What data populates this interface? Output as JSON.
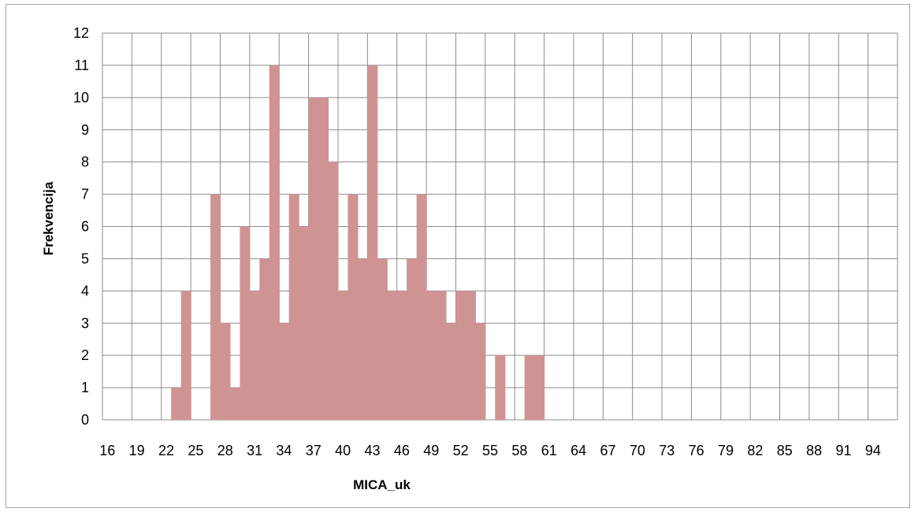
{
  "chart_data": {
    "type": "bar",
    "title": "",
    "xlabel": "MICA_uk",
    "ylabel": "Frekvencija",
    "ylim": [
      0,
      12
    ],
    "yticks": [
      0,
      1,
      2,
      3,
      4,
      5,
      6,
      7,
      8,
      9,
      10,
      11,
      12
    ],
    "grid": true,
    "legend": "none",
    "bar_color": "#d09393",
    "grid_color": "#8c8c8c",
    "categories": [
      16,
      17,
      18,
      19,
      20,
      21,
      22,
      23,
      24,
      25,
      26,
      27,
      28,
      29,
      30,
      31,
      32,
      33,
      34,
      35,
      36,
      37,
      38,
      39,
      40,
      41,
      42,
      43,
      44,
      45,
      46,
      47,
      48,
      49,
      50,
      51,
      52,
      53,
      54,
      55,
      56,
      57,
      58,
      59,
      60,
      61,
      62,
      63,
      64,
      65,
      66,
      67,
      68,
      69,
      70,
      71,
      72,
      73,
      74,
      75,
      76,
      77,
      78,
      79,
      80,
      81,
      82,
      83,
      84,
      85,
      86,
      87,
      88,
      89,
      90,
      91,
      92,
      93,
      94,
      95,
      96
    ],
    "x_tick_labels": [
      "16",
      "19",
      "22",
      "25",
      "28",
      "31",
      "34",
      "37",
      "40",
      "43",
      "46",
      "49",
      "52",
      "55",
      "58",
      "61",
      "64",
      "67",
      "70",
      "73",
      "76",
      "79",
      "82",
      "85",
      "88",
      "91",
      "94"
    ],
    "values": [
      0,
      0,
      0,
      0,
      0,
      0,
      0,
      1,
      4,
      0,
      0,
      7,
      3,
      1,
      6,
      4,
      5,
      11,
      3,
      7,
      6,
      10,
      10,
      8,
      4,
      7,
      5,
      11,
      5,
      4,
      4,
      5,
      7,
      4,
      4,
      3,
      4,
      4,
      3,
      0,
      2,
      0,
      0,
      2,
      2,
      0,
      0,
      0,
      0,
      0,
      0,
      0,
      0,
      0,
      0,
      0,
      0,
      0,
      0,
      0,
      0,
      0,
      0,
      0,
      0,
      0,
      0,
      0,
      0,
      0,
      0,
      0,
      0,
      0,
      0,
      0,
      0,
      0,
      0,
      0,
      0
    ]
  }
}
